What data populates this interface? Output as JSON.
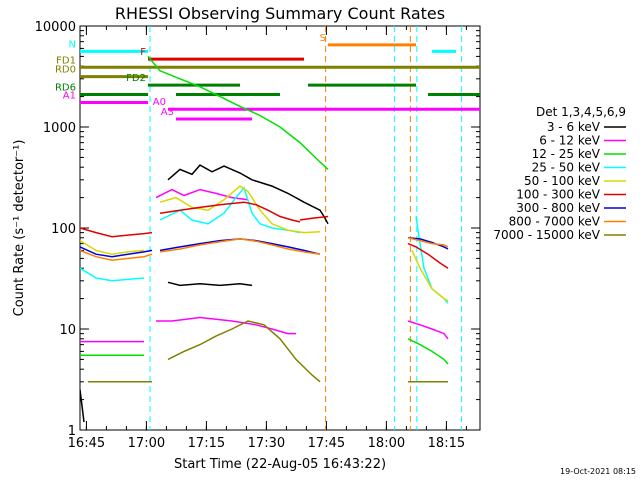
{
  "chart_data": {
    "type": "line",
    "title": "RHESSI Observing Summary Count Rates",
    "xlabel": "Start Time (22-Aug-05 16:43:22)",
    "ylabel": "Count Rate (s⁻¹ detector⁻¹)",
    "x_unit": "minutes after 16:43:22",
    "xlim": [
      0,
      100
    ],
    "ylim": [
      1,
      10000
    ],
    "yscale": "log",
    "footer": "19-Oct-2021 08:15",
    "x_ticks": [
      {
        "x": 1.6,
        "label": "16:45"
      },
      {
        "x": 16.6,
        "label": "17:00"
      },
      {
        "x": 31.6,
        "label": "17:15"
      },
      {
        "x": 46.6,
        "label": "17:30"
      },
      {
        "x": 61.6,
        "label": "17:45"
      },
      {
        "x": 76.6,
        "label": "18:00"
      },
      {
        "x": 91.6,
        "label": "18:15"
      }
    ],
    "y_ticks": [
      {
        "y": 1,
        "label": "1"
      },
      {
        "y": 10,
        "label": "10"
      },
      {
        "y": 100,
        "label": "100"
      },
      {
        "y": 1000,
        "label": "1000"
      },
      {
        "y": 10000,
        "label": "10000"
      }
    ],
    "legend": {
      "title": "Det 1,3,4,5,6,9",
      "placement": "right",
      "entries": [
        {
          "label": "3 - 6 keV",
          "color": "#000000"
        },
        {
          "label": "6 - 12 keV",
          "color": "#ff00ff"
        },
        {
          "label": "12 - 25 keV",
          "color": "#00e000"
        },
        {
          "label": "25 - 50 keV",
          "color": "#00ffff"
        },
        {
          "label": "50 - 100 keV",
          "color": "#d8d800"
        },
        {
          "label": "100 - 300 keV",
          "color": "#e00000"
        },
        {
          "label": "300 - 800 keV",
          "color": "#0000e0"
        },
        {
          "label": "800 - 7000 keV",
          "color": "#ff8000"
        },
        {
          "label": "7000 - 15000 keV",
          "color": "#808000"
        }
      ]
    },
    "series": [
      {
        "name": "3 - 6 keV",
        "color": "#000000",
        "segments": [
          [
            [
              0,
              2.5
            ],
            [
              1,
              1.2
            ]
          ],
          [
            [
              22,
              29
            ],
            [
              25,
              27
            ],
            [
              30,
              28
            ],
            [
              35,
              27
            ],
            [
              40,
              28
            ],
            [
              43,
              27
            ]
          ],
          [
            [
              43,
              300
            ],
            [
              48,
              260
            ],
            [
              52,
              220
            ],
            [
              56,
              180
            ],
            [
              60,
              150
            ],
            [
              61,
              130
            ],
            [
              62,
              110
            ]
          ],
          [
            [
              22,
              300
            ],
            [
              25,
              380
            ],
            [
              28,
              340
            ],
            [
              30,
              420
            ],
            [
              33,
              360
            ],
            [
              36,
              410
            ],
            [
              40,
              350
            ],
            [
              43,
              300
            ]
          ]
        ]
      },
      {
        "name": "6 - 12 keV",
        "color": "#ff00ff",
        "segments": [
          [
            [
              0,
              7.5
            ],
            [
              16,
              7.5
            ]
          ],
          [
            [
              19,
              200
            ],
            [
              23,
              240
            ],
            [
              26,
              210
            ],
            [
              30,
              240
            ],
            [
              34,
              220
            ],
            [
              38,
              200
            ],
            [
              42,
              190
            ]
          ],
          [
            [
              19,
              12
            ],
            [
              23,
              12
            ],
            [
              30,
              13
            ],
            [
              38,
              12
            ],
            [
              44,
              11
            ],
            [
              48,
              10
            ],
            [
              52,
              9
            ],
            [
              54,
              9
            ]
          ],
          [
            [
              82,
              12
            ],
            [
              85,
              11
            ],
            [
              88,
              10
            ],
            [
              91,
              9
            ],
            [
              92,
              8
            ]
          ]
        ]
      },
      {
        "name": "12 - 25 keV",
        "color": "#00e000",
        "segments": [
          [
            [
              0,
              5.5
            ],
            [
              16,
              5.5
            ]
          ],
          [
            [
              17,
              5000
            ],
            [
              20,
              3600
            ],
            [
              25,
              3000
            ],
            [
              30,
              2500
            ],
            [
              35,
              2000
            ],
            [
              40,
              1600
            ],
            [
              45,
              1300
            ],
            [
              50,
              1000
            ],
            [
              55,
              700
            ],
            [
              60,
              450
            ],
            [
              62,
              380
            ]
          ],
          [
            [
              82,
              8
            ],
            [
              85,
              7
            ],
            [
              88,
              6
            ],
            [
              91,
              5
            ],
            [
              92,
              4.5
            ]
          ]
        ]
      },
      {
        "name": "25 - 50 keV",
        "color": "#00ffff",
        "segments": [
          [
            [
              0,
              40
            ],
            [
              4,
              32
            ],
            [
              8,
              30
            ],
            [
              12,
              31
            ],
            [
              16,
              32
            ]
          ],
          [
            [
              20,
              120
            ],
            [
              25,
              150
            ],
            [
              28,
              120
            ],
            [
              32,
              110
            ],
            [
              36,
              140
            ],
            [
              39,
              200
            ],
            [
              41,
              250
            ],
            [
              43,
              140
            ],
            [
              45,
              110
            ],
            [
              48,
              100
            ],
            [
              52,
              95
            ],
            [
              55,
              90
            ]
          ],
          [
            [
              84,
              130
            ],
            [
              85,
              70
            ],
            [
              86,
              40
            ],
            [
              88,
              25
            ],
            [
              91,
              20
            ],
            [
              92,
              18
            ]
          ]
        ]
      },
      {
        "name": "50 - 100 keV",
        "color": "#d8d800",
        "segments": [
          [
            [
              0,
              75
            ],
            [
              4,
              60
            ],
            [
              8,
              55
            ],
            [
              12,
              58
            ],
            [
              16,
              60
            ]
          ],
          [
            [
              20,
              180
            ],
            [
              24,
              200
            ],
            [
              28,
              160
            ],
            [
              32,
              150
            ],
            [
              36,
              190
            ],
            [
              40,
              260
            ],
            [
              42,
              230
            ],
            [
              45,
              150
            ],
            [
              48,
              110
            ],
            [
              52,
              95
            ],
            [
              56,
              90
            ],
            [
              60,
              92
            ]
          ],
          [
            [
              83,
              60
            ],
            [
              85,
              40
            ],
            [
              88,
              25
            ],
            [
              91,
              20
            ],
            [
              92,
              19
            ]
          ]
        ]
      },
      {
        "name": "100 - 300 keV",
        "color": "#e00000",
        "segments": [
          [
            [
              0,
              100
            ],
            [
              4,
              90
            ],
            [
              8,
              82
            ],
            [
              12,
              85
            ],
            [
              16,
              88
            ],
            [
              18,
              90
            ]
          ],
          [
            [
              20,
              140
            ],
            [
              25,
              150
            ],
            [
              30,
              160
            ],
            [
              35,
              170
            ],
            [
              38,
              175
            ],
            [
              41,
              180
            ],
            [
              44,
              170
            ],
            [
              47,
              150
            ],
            [
              50,
              130
            ],
            [
              53,
              120
            ],
            [
              55,
              115
            ]
          ],
          [
            [
              55,
              120
            ],
            [
              58,
              125
            ],
            [
              62,
              130
            ]
          ],
          [
            [
              82,
              70
            ],
            [
              84,
              65
            ],
            [
              87,
              55
            ],
            [
              90,
              45
            ],
            [
              92,
              40
            ]
          ]
        ]
      },
      {
        "name": "300 - 800 keV",
        "color": "#0000e0",
        "segments": [
          [
            [
              0,
              65
            ],
            [
              4,
              55
            ],
            [
              8,
              52
            ],
            [
              12,
              55
            ],
            [
              16,
              58
            ],
            [
              18,
              60
            ]
          ],
          [
            [
              20,
              60
            ],
            [
              25,
              65
            ],
            [
              30,
              70
            ],
            [
              35,
              75
            ],
            [
              40,
              78
            ],
            [
              44,
              75
            ],
            [
              48,
              70
            ],
            [
              52,
              65
            ],
            [
              56,
              60
            ],
            [
              60,
              55
            ]
          ],
          [
            [
              82,
              80
            ],
            [
              85,
              78
            ],
            [
              88,
              72
            ],
            [
              91,
              65
            ],
            [
              92,
              62
            ]
          ]
        ]
      },
      {
        "name": "800 - 7000 keV",
        "color": "#ff8000",
        "segments": [
          [
            [
              0,
              60
            ],
            [
              4,
              52
            ],
            [
              8,
              48
            ],
            [
              12,
              50
            ],
            [
              16,
              52
            ],
            [
              18,
              55
            ]
          ],
          [
            [
              20,
              58
            ],
            [
              25,
              62
            ],
            [
              30,
              68
            ],
            [
              35,
              73
            ],
            [
              40,
              78
            ],
            [
              44,
              74
            ],
            [
              48,
              68
            ],
            [
              52,
              62
            ],
            [
              56,
              58
            ],
            [
              60,
              55
            ]
          ],
          [
            [
              82,
              80
            ],
            [
              85,
              75
            ],
            [
              88,
              70
            ],
            [
              91,
              68
            ],
            [
              92,
              65
            ]
          ]
        ]
      },
      {
        "name": "7000 - 15000 keV",
        "color": "#808000",
        "segments": [
          [
            [
              2,
              3
            ],
            [
              6,
              3
            ],
            [
              10,
              3
            ],
            [
              14,
              3
            ],
            [
              18,
              3
            ]
          ],
          [
            [
              22,
              5
            ],
            [
              26,
              6
            ],
            [
              30,
              7
            ],
            [
              34,
              8.5
            ],
            [
              38,
              10
            ],
            [
              42,
              12
            ],
            [
              46,
              11
            ],
            [
              50,
              8
            ],
            [
              54,
              5
            ],
            [
              58,
              3.5
            ],
            [
              60,
              3
            ]
          ],
          [
            [
              82,
              3
            ],
            [
              85,
              3
            ],
            [
              88,
              3
            ],
            [
              91,
              3
            ],
            [
              92,
              3
            ]
          ]
        ]
      }
    ],
    "flags": [
      {
        "label": "N",
        "color": "#00ffff",
        "y": 5600,
        "segments": [
          [
            0,
            17
          ],
          [
            88,
            94
          ]
        ]
      },
      {
        "label": "S",
        "color": "#ff8000",
        "y": 6500,
        "segments": [
          [
            62,
            84
          ]
        ]
      },
      {
        "label": "FD1",
        "color": "#808000",
        "y": 3900,
        "segments": [
          [
            0,
            100
          ]
        ]
      },
      {
        "label": "RD0",
        "color": "#808000",
        "y": 3150,
        "segments": [
          [
            0,
            17
          ]
        ]
      },
      {
        "label": "RD6",
        "color": "#008000",
        "y": 2100,
        "segments": [
          [
            0,
            17
          ],
          [
            24,
            50
          ],
          [
            87,
            100
          ]
        ]
      },
      {
        "label": "FD2",
        "color": "#008000",
        "y": 2600,
        "segments": [
          [
            17,
            40
          ],
          [
            57,
            84
          ]
        ]
      },
      {
        "label": "A0",
        "color": "#ff00ff",
        "y": 1500,
        "segments": [
          [
            22,
            100
          ]
        ]
      },
      {
        "label": "A1",
        "color": "#ff00ff",
        "y": 1750,
        "segments": [
          [
            0,
            17
          ]
        ]
      },
      {
        "label": "A3",
        "color": "#ff00ff",
        "y": 1200,
        "segments": [
          [
            24,
            43
          ]
        ]
      },
      {
        "label": "F",
        "color": "#e00000",
        "y": 4700,
        "segments": [
          [
            17,
            56
          ]
        ]
      }
    ],
    "markers": [
      {
        "color": "#00ffff",
        "x": 17.5
      },
      {
        "color": "#ff8000",
        "x": 61.4
      },
      {
        "color": "#00ffff",
        "x": 78.6
      },
      {
        "color": "#ff8000",
        "x": 82.6
      },
      {
        "color": "#00ffff",
        "x": 84.2
      },
      {
        "color": "#00ffff",
        "x": 95.4
      }
    ]
  }
}
